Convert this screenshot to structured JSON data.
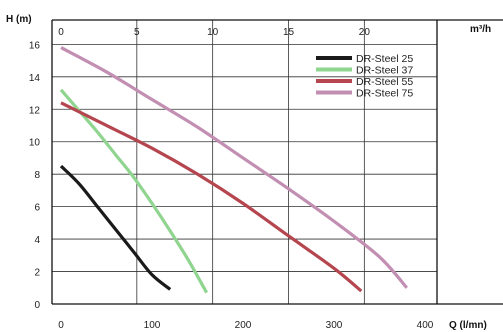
{
  "chart_data": {
    "type": "line",
    "y_unit_label": "H (m)",
    "top_unit_label": "m³/h",
    "bottom_unit_label": "Q (l/mn)",
    "ylim": [
      0,
      17.5
    ],
    "xlim": [
      0,
      400
    ],
    "top_axis_lim": [
      0,
      24
    ],
    "yticks": [
      0,
      2,
      4,
      6,
      8,
      10,
      12,
      14,
      16
    ],
    "xticks_bottom": [
      0,
      100,
      200,
      300,
      400
    ],
    "xticks_top": [
      0,
      5,
      10,
      15,
      20
    ],
    "grid": true,
    "legend_position": "top-right",
    "series": [
      {
        "name": "DR-Steel 25",
        "color": "#1a1a1a",
        "x": [
          0,
          20,
          40,
          60,
          80,
          100,
          120
        ],
        "y": [
          8.5,
          7.4,
          6.0,
          4.6,
          3.2,
          1.8,
          0.9
        ]
      },
      {
        "name": "DR-Steel 37",
        "color": "#8fd48f",
        "x": [
          0,
          20,
          40,
          60,
          80,
          100,
          120,
          140,
          160
        ],
        "y": [
          13.2,
          11.9,
          10.6,
          9.2,
          7.8,
          6.2,
          4.5,
          2.7,
          0.7
        ]
      },
      {
        "name": "DR-Steel 55",
        "color": "#b5464f",
        "x": [
          0,
          50,
          100,
          150,
          200,
          250,
          300,
          330
        ],
        "y": [
          12.4,
          11.0,
          9.6,
          8.0,
          6.2,
          4.2,
          2.2,
          0.8
        ]
      },
      {
        "name": "DR-Steel 75",
        "color": "#c28fb3",
        "x": [
          0,
          50,
          100,
          150,
          200,
          250,
          300,
          350,
          380
        ],
        "y": [
          15.8,
          14.3,
          12.6,
          10.9,
          9.0,
          7.1,
          5.1,
          2.9,
          1.0
        ]
      }
    ]
  }
}
